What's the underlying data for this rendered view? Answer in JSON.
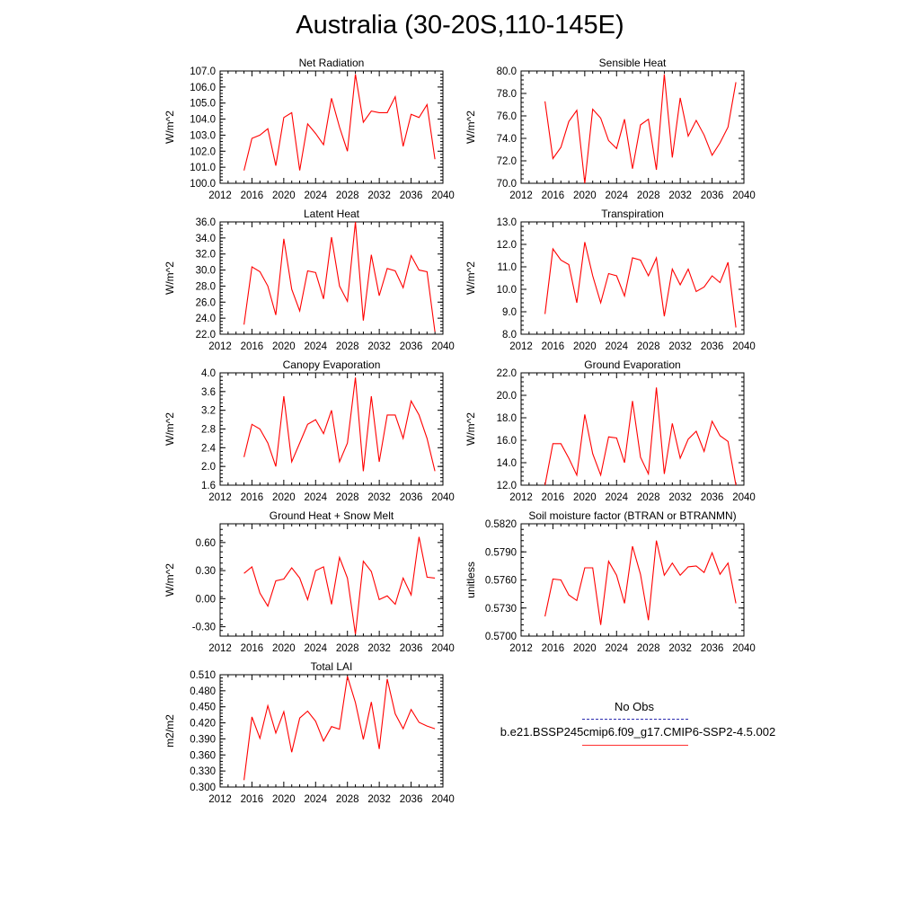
{
  "page": {
    "title": "Australia (30-20S,110-145E)"
  },
  "legend": {
    "obs_label": "No Obs",
    "model_label": "b.e21.BSSP245cmip6.f09_g17.CMIP6-SSP2-4.5.002",
    "obs_color": "#2b2bb0",
    "model_color": "#ff0000"
  },
  "chart_data": [
    {
      "type": "line",
      "title": "Net Radiation",
      "ylabel": "W/m^2",
      "xlim": [
        2012,
        2040
      ],
      "ylim": [
        100.0,
        107.0
      ],
      "xticks": [
        2012,
        2016,
        2020,
        2024,
        2028,
        2032,
        2036,
        2040
      ],
      "xtick_labels": [
        "2012",
        "2016",
        "2020",
        "2024",
        "2028",
        "2032",
        "2036",
        "2040"
      ],
      "yticks": [
        100.0,
        101.0,
        102.0,
        103.0,
        104.0,
        105.0,
        106.0,
        107.0
      ],
      "ytick_labels": [
        "100.0",
        "101.0",
        "102.0",
        "103.0",
        "104.0",
        "105.0",
        "106.0",
        "107.0"
      ],
      "series": [
        {
          "color": "#ff0000",
          "x": [
            2015,
            2016,
            2017,
            2018,
            2019,
            2020,
            2021,
            2022,
            2023,
            2024,
            2025,
            2026,
            2027,
            2028,
            2029,
            2030,
            2031,
            2032,
            2033,
            2034,
            2035,
            2036,
            2037,
            2038,
            2039
          ],
          "y": [
            100.8,
            102.8,
            103.0,
            103.4,
            101.1,
            104.1,
            104.4,
            100.8,
            103.7,
            103.1,
            102.4,
            105.3,
            103.5,
            102.0,
            106.8,
            103.8,
            104.5,
            104.4,
            104.4,
            105.4,
            102.3,
            104.3,
            104.1,
            104.9,
            101.5
          ]
        }
      ]
    },
    {
      "type": "line",
      "title": "Sensible Heat",
      "ylabel": "W/m^2",
      "xlim": [
        2012,
        2040
      ],
      "ylim": [
        70.0,
        80.0
      ],
      "xticks": [
        2012,
        2016,
        2020,
        2024,
        2028,
        2032,
        2036,
        2040
      ],
      "xtick_labels": [
        "2012",
        "2016",
        "2020",
        "2024",
        "2028",
        "2032",
        "2036",
        "2040"
      ],
      "yticks": [
        70.0,
        72.0,
        74.0,
        76.0,
        78.0,
        80.0
      ],
      "ytick_labels": [
        "70.0",
        "72.0",
        "74.0",
        "76.0",
        "78.0",
        "80.0"
      ],
      "series": [
        {
          "color": "#ff0000",
          "x": [
            2015,
            2016,
            2017,
            2018,
            2019,
            2020,
            2021,
            2022,
            2023,
            2024,
            2025,
            2026,
            2027,
            2028,
            2029,
            2030,
            2031,
            2032,
            2033,
            2034,
            2035,
            2036,
            2037,
            2038,
            2039
          ],
          "y": [
            77.3,
            72.2,
            73.2,
            75.5,
            76.5,
            70.0,
            76.6,
            75.8,
            73.8,
            73.1,
            75.7,
            71.3,
            75.2,
            75.7,
            71.2,
            79.7,
            72.3,
            77.6,
            74.2,
            75.6,
            74.3,
            72.5,
            73.6,
            75.0,
            79.0
          ]
        }
      ]
    },
    {
      "type": "line",
      "title": "Latent Heat",
      "ylabel": "W/m^2",
      "xlim": [
        2012,
        2040
      ],
      "ylim": [
        22.0,
        36.0
      ],
      "xticks": [
        2012,
        2016,
        2020,
        2024,
        2028,
        2032,
        2036,
        2040
      ],
      "xtick_labels": [
        "2012",
        "2016",
        "2020",
        "2024",
        "2028",
        "2032",
        "2036",
        "2040"
      ],
      "yticks": [
        22.0,
        24.0,
        26.0,
        28.0,
        30.0,
        32.0,
        34.0,
        36.0
      ],
      "ytick_labels": [
        "22.0",
        "24.0",
        "26.0",
        "28.0",
        "30.0",
        "32.0",
        "34.0",
        "36.0"
      ],
      "series": [
        {
          "color": "#ff0000",
          "x": [
            2015,
            2016,
            2017,
            2018,
            2019,
            2020,
            2021,
            2022,
            2023,
            2024,
            2025,
            2026,
            2027,
            2028,
            2029,
            2030,
            2031,
            2032,
            2033,
            2034,
            2035,
            2036,
            2037,
            2038,
            2039
          ],
          "y": [
            23.2,
            30.4,
            29.8,
            28.0,
            24.4,
            33.9,
            27.6,
            24.9,
            29.9,
            29.7,
            26.4,
            34.1,
            28.0,
            26.1,
            36.0,
            23.7,
            31.9,
            26.8,
            30.2,
            29.9,
            27.8,
            31.8,
            30.0,
            29.8,
            22.3
          ]
        }
      ]
    },
    {
      "type": "line",
      "title": "Transpiration",
      "ylabel": "W/m^2",
      "xlim": [
        2012,
        2040
      ],
      "ylim": [
        8.0,
        13.0
      ],
      "xticks": [
        2012,
        2016,
        2020,
        2024,
        2028,
        2032,
        2036,
        2040
      ],
      "xtick_labels": [
        "2012",
        "2016",
        "2020",
        "2024",
        "2028",
        "2032",
        "2036",
        "2040"
      ],
      "yticks": [
        8.0,
        9.0,
        10.0,
        11.0,
        12.0,
        13.0
      ],
      "ytick_labels": [
        "8.0",
        "9.0",
        "10.0",
        "11.0",
        "12.0",
        "13.0"
      ],
      "series": [
        {
          "color": "#ff0000",
          "x": [
            2015,
            2016,
            2017,
            2018,
            2019,
            2020,
            2021,
            2022,
            2023,
            2024,
            2025,
            2026,
            2027,
            2028,
            2029,
            2030,
            2031,
            2032,
            2033,
            2034,
            2035,
            2036,
            2037,
            2038,
            2039
          ],
          "y": [
            8.9,
            11.8,
            11.3,
            11.1,
            9.4,
            12.1,
            10.6,
            9.4,
            10.7,
            10.6,
            9.7,
            11.4,
            11.3,
            10.6,
            11.4,
            8.8,
            10.9,
            10.2,
            10.9,
            9.9,
            10.1,
            10.6,
            10.3,
            11.2,
            8.3
          ]
        }
      ]
    },
    {
      "type": "line",
      "title": "Canopy Evaporation",
      "ylabel": "W/m^2",
      "xlim": [
        2012,
        2040
      ],
      "ylim": [
        1.6,
        4.0
      ],
      "xticks": [
        2012,
        2016,
        2020,
        2024,
        2028,
        2032,
        2036,
        2040
      ],
      "xtick_labels": [
        "2012",
        "2016",
        "2020",
        "2024",
        "2028",
        "2032",
        "2036",
        "2040"
      ],
      "yticks": [
        1.6,
        2.0,
        2.4,
        2.8,
        3.2,
        3.6,
        4.0
      ],
      "ytick_labels": [
        "1.6",
        "2.0",
        "2.4",
        "2.8",
        "3.2",
        "3.6",
        "4.0"
      ],
      "series": [
        {
          "color": "#ff0000",
          "x": [
            2015,
            2016,
            2017,
            2018,
            2019,
            2020,
            2021,
            2022,
            2023,
            2024,
            2025,
            2026,
            2027,
            2028,
            2029,
            2030,
            2031,
            2032,
            2033,
            2034,
            2035,
            2036,
            2037,
            2038,
            2039
          ],
          "y": [
            2.2,
            2.9,
            2.8,
            2.5,
            2.0,
            3.5,
            2.1,
            2.5,
            2.9,
            3.0,
            2.7,
            3.2,
            2.1,
            2.5,
            3.9,
            1.9,
            3.5,
            2.1,
            3.1,
            3.1,
            2.6,
            3.4,
            3.1,
            2.6,
            1.9
          ]
        }
      ]
    },
    {
      "type": "line",
      "title": "Ground Evaporation",
      "ylabel": "W/m^2",
      "xlim": [
        2012,
        2040
      ],
      "ylim": [
        12.0,
        22.0
      ],
      "xticks": [
        2012,
        2016,
        2020,
        2024,
        2028,
        2032,
        2036,
        2040
      ],
      "xtick_labels": [
        "2012",
        "2016",
        "2020",
        "2024",
        "2028",
        "2032",
        "2036",
        "2040"
      ],
      "yticks": [
        12.0,
        14.0,
        16.0,
        18.0,
        20.0,
        22.0
      ],
      "ytick_labels": [
        "12.0",
        "14.0",
        "16.0",
        "18.0",
        "20.0",
        "22.0"
      ],
      "series": [
        {
          "color": "#ff0000",
          "x": [
            2015,
            2016,
            2017,
            2018,
            2019,
            2020,
            2021,
            2022,
            2023,
            2024,
            2025,
            2026,
            2027,
            2028,
            2029,
            2030,
            2031,
            2032,
            2033,
            2034,
            2035,
            2036,
            2037,
            2038,
            2039
          ],
          "y": [
            12.0,
            15.7,
            15.7,
            14.4,
            12.9,
            18.3,
            14.8,
            12.9,
            16.3,
            16.2,
            14.0,
            19.5,
            14.5,
            13.0,
            20.7,
            13.0,
            17.5,
            14.4,
            16.1,
            16.8,
            15.0,
            17.7,
            16.4,
            15.9,
            12.0
          ]
        }
      ]
    },
    {
      "type": "line",
      "title": "Ground Heat + Snow Melt",
      "ylabel": "W/m^2",
      "xlim": [
        2012,
        2040
      ],
      "ylim": [
        -0.4,
        0.8
      ],
      "xticks": [
        2012,
        2016,
        2020,
        2024,
        2028,
        2032,
        2036,
        2040
      ],
      "xtick_labels": [
        "2012",
        "2016",
        "2020",
        "2024",
        "2028",
        "2032",
        "2036",
        "2040"
      ],
      "yticks": [
        -0.3,
        0.0,
        0.3,
        0.6
      ],
      "ytick_labels": [
        "-0.30",
        "0.00",
        "0.30",
        "0.60"
      ],
      "series": [
        {
          "color": "#ff0000",
          "x": [
            2015,
            2016,
            2017,
            2018,
            2019,
            2020,
            2021,
            2022,
            2023,
            2024,
            2025,
            2026,
            2027,
            2028,
            2029,
            2030,
            2031,
            2032,
            2033,
            2034,
            2035,
            2036,
            2037,
            2038,
            2039
          ],
          "y": [
            0.27,
            0.34,
            0.06,
            -0.08,
            0.19,
            0.21,
            0.33,
            0.22,
            -0.01,
            0.3,
            0.34,
            -0.06,
            0.44,
            0.22,
            -0.38,
            0.4,
            0.29,
            -0.01,
            0.03,
            -0.06,
            0.22,
            0.04,
            0.66,
            0.23,
            0.22
          ]
        }
      ]
    },
    {
      "type": "line",
      "title": "Soil moisture factor (BTRAN or BTRANMN)",
      "ylabel": "unitless",
      "xlim": [
        2012,
        2040
      ],
      "ylim": [
        0.57,
        0.582
      ],
      "xticks": [
        2012,
        2016,
        2020,
        2024,
        2028,
        2032,
        2036,
        2040
      ],
      "xtick_labels": [
        "2012",
        "2016",
        "2020",
        "2024",
        "2028",
        "2032",
        "2036",
        "2040"
      ],
      "yticks": [
        0.57,
        0.573,
        0.576,
        0.579,
        0.582
      ],
      "ytick_labels": [
        "0.5700",
        "0.5730",
        "0.5760",
        "0.5790",
        "0.5820"
      ],
      "series": [
        {
          "color": "#ff0000",
          "x": [
            2015,
            2016,
            2017,
            2018,
            2019,
            2020,
            2021,
            2022,
            2023,
            2024,
            2025,
            2026,
            2027,
            2028,
            2029,
            2030,
            2031,
            2032,
            2033,
            2034,
            2035,
            2036,
            2037,
            2038,
            2039
          ],
          "y": [
            0.5721,
            0.5761,
            0.576,
            0.5744,
            0.5738,
            0.5773,
            0.5773,
            0.5712,
            0.578,
            0.5765,
            0.5735,
            0.5796,
            0.5766,
            0.5717,
            0.5802,
            0.5765,
            0.5778,
            0.5765,
            0.5774,
            0.5775,
            0.5768,
            0.5789,
            0.5766,
            0.5778,
            0.5735
          ]
        }
      ]
    },
    {
      "type": "line",
      "title": "Total LAI",
      "ylabel": "m2/m2",
      "xlim": [
        2012,
        2040
      ],
      "ylim": [
        0.3,
        0.51
      ],
      "xticks": [
        2012,
        2016,
        2020,
        2024,
        2028,
        2032,
        2036,
        2040
      ],
      "xtick_labels": [
        "2012",
        "2016",
        "2020",
        "2024",
        "2028",
        "2032",
        "2036",
        "2040"
      ],
      "yticks": [
        0.3,
        0.33,
        0.36,
        0.39,
        0.42,
        0.45,
        0.48,
        0.51
      ],
      "ytick_labels": [
        "0.300",
        "0.330",
        "0.360",
        "0.390",
        "0.420",
        "0.450",
        "0.480",
        "0.510"
      ],
      "series": [
        {
          "color": "#ff0000",
          "x": [
            2015,
            2016,
            2017,
            2018,
            2019,
            2020,
            2021,
            2022,
            2023,
            2024,
            2025,
            2026,
            2027,
            2028,
            2029,
            2030,
            2031,
            2032,
            2033,
            2034,
            2035,
            2036,
            2037,
            2038,
            2039
          ],
          "y": [
            0.313,
            0.431,
            0.391,
            0.452,
            0.401,
            0.441,
            0.365,
            0.429,
            0.442,
            0.423,
            0.386,
            0.413,
            0.408,
            0.507,
            0.458,
            0.389,
            0.459,
            0.371,
            0.502,
            0.437,
            0.409,
            0.445,
            0.421,
            0.414,
            0.409
          ]
        }
      ]
    }
  ]
}
